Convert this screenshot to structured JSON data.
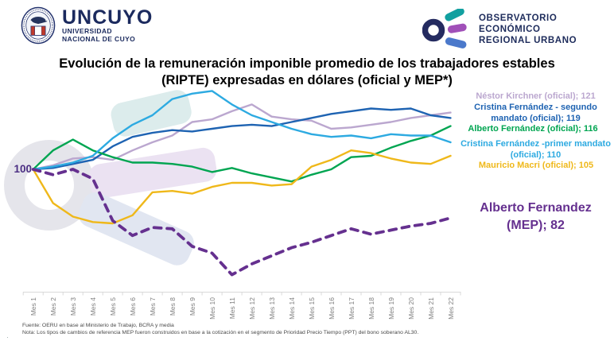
{
  "header": {
    "uncuyo": {
      "acronym": "UNCUYO",
      "sub1": "UNIVERSIDAD",
      "sub2": "NACIONAL DE CUYO"
    },
    "oeru": {
      "line1": "OBSERVATORIO",
      "line2": "ECONÓMICO",
      "line3": "REGIONAL URBANO"
    }
  },
  "title": {
    "line1": "Evolución de la remuneración imponible promedio de los trabajadores estables",
    "line2": "(RIPTE) expresadas en dólares (oficial y MEP*)"
  },
  "chart_data": {
    "type": "line",
    "baseline_label": "100",
    "baseline_value": 100,
    "grid": false,
    "legend_position": "right",
    "ylim": [
      55,
      135
    ],
    "categories": [
      "Mes 1",
      "Mes 2",
      "Mes 3",
      "Mes 4",
      "Mes 5",
      "Mes 6",
      "Mes 7",
      "Mes 8",
      "Mes 9",
      "Mes 10",
      "Mes 11",
      "Mes 12",
      "Mes 13",
      "Mes 14",
      "Mes 15",
      "Mes 16",
      "Mes 17",
      "Mes 18",
      "Mes 19",
      "Mes 20",
      "Mes 21",
      "Mes 22"
    ],
    "series": [
      {
        "name": "Néstor Kirchner (oficial)",
        "label": "Néstor Kirchner (oficial); 121",
        "final_value": 121,
        "color": "#BBA7CF",
        "dash": false,
        "values": [
          100,
          101.5,
          104,
          104.5,
          103.5,
          107,
          110,
          112.5,
          117.5,
          118.5,
          121.5,
          124,
          119.5,
          118.5,
          118,
          115,
          115.5,
          116.5,
          117.5,
          119,
          120,
          121
        ]
      },
      {
        "name": "Cristina Fernández - segundo mandato (oficial)",
        "label": "Cristina Fernández - segundo mandato (oficial); 119",
        "final_value": 119,
        "color": "#1E63B2",
        "dash": false,
        "values": [
          100,
          100.5,
          102,
          103.5,
          108.5,
          112,
          113.5,
          114.5,
          114,
          115,
          116,
          116.5,
          116,
          117.5,
          119,
          120.5,
          121.5,
          122.5,
          122,
          122.5,
          120,
          119
        ]
      },
      {
        "name": "Alberto Fernández (oficial)",
        "label": "Alberto Fernández (oficial); 116",
        "final_value": 116,
        "color": "#00A551",
        "dash": false,
        "values": [
          100,
          107,
          111,
          107,
          104.5,
          102.5,
          102.5,
          102,
          101,
          99,
          100.5,
          98.5,
          97,
          95.5,
          98,
          100,
          104.5,
          105,
          108,
          110.5,
          112.5,
          116
        ]
      },
      {
        "name": "Cristina Fernández - primer mandato (oficial)",
        "label": "Cristina Fernández -primer mandato (oficial); 110",
        "final_value": 110,
        "color": "#2DAAE1",
        "dash": false,
        "values": [
          100,
          101,
          102.5,
          105,
          111.5,
          116.5,
          120,
          126,
          128,
          129,
          124,
          120,
          117.5,
          115,
          113,
          112,
          112.5,
          111.5,
          113,
          112.5,
          112.5,
          110
        ]
      },
      {
        "name": "Mauricio Macri (oficial)",
        "label": "Mauricio Macri (oficial); 105",
        "final_value": 105,
        "color": "#EFB81A",
        "dash": false,
        "values": [
          100,
          87.5,
          82.5,
          80.5,
          80,
          83,
          91.5,
          92,
          91,
          93.5,
          95,
          95,
          94,
          94.5,
          101,
          103.5,
          107,
          106,
          104,
          102.5,
          102,
          105
        ]
      },
      {
        "name": "Alberto Fernandez (MEP)",
        "label": "Alberto Fernandez (MEP); 82",
        "label_line1": "Alberto Fernandez",
        "label_line2": "(MEP); 82",
        "final_value": 82,
        "color": "#65308F",
        "dash": true,
        "values": [
          100,
          98,
          100,
          96.5,
          81,
          75.5,
          78.5,
          78,
          71.5,
          69,
          61,
          65,
          68,
          71,
          73,
          75.5,
          78,
          76,
          77.5,
          79,
          80,
          82
        ]
      }
    ]
  },
  "footer": {
    "fuente": "Fuente: OERU  en base al Ministerio  de Trabajo, BCRA  y media",
    "nota": "Nota:  Los tipos de cambios de referencia MEP  fueron construidos en base a la cotización en el segmento de Prioridad  Precio  Tiempo  (PPT)  del bono soberano AL30."
  }
}
